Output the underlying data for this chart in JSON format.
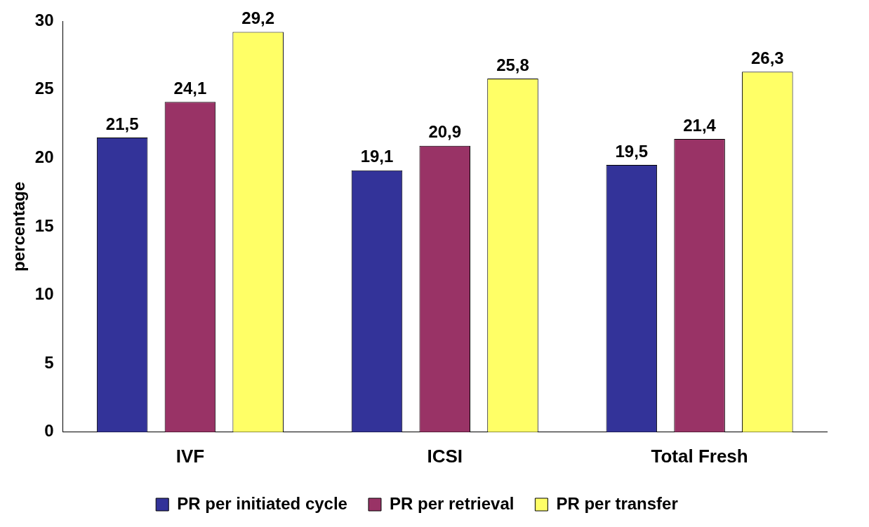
{
  "chart_data": {
    "type": "bar",
    "ylabel": "percentage",
    "categories": [
      "IVF",
      "ICSI",
      "Total Fresh"
    ],
    "series": [
      {
        "name": "PR per initiated cycle",
        "color": "#333399",
        "values": [
          21.5,
          19.1,
          19.5
        ],
        "value_labels": [
          "21,5",
          "19,1",
          "19,5"
        ]
      },
      {
        "name": "PR per retrieval",
        "color": "#993366",
        "values": [
          24.1,
          20.9,
          21.4
        ],
        "value_labels": [
          "24,1",
          "20,9",
          "21,4"
        ]
      },
      {
        "name": "PR per transfer",
        "color": "#ffff66",
        "values": [
          29.2,
          25.8,
          26.3
        ],
        "value_labels": [
          "29,2",
          "25,8",
          "26,3"
        ]
      }
    ],
    "ylim": [
      0,
      30
    ],
    "yticks": [
      0,
      5,
      10,
      15,
      20,
      25,
      30
    ],
    "grid": false,
    "legend": "bottom"
  }
}
